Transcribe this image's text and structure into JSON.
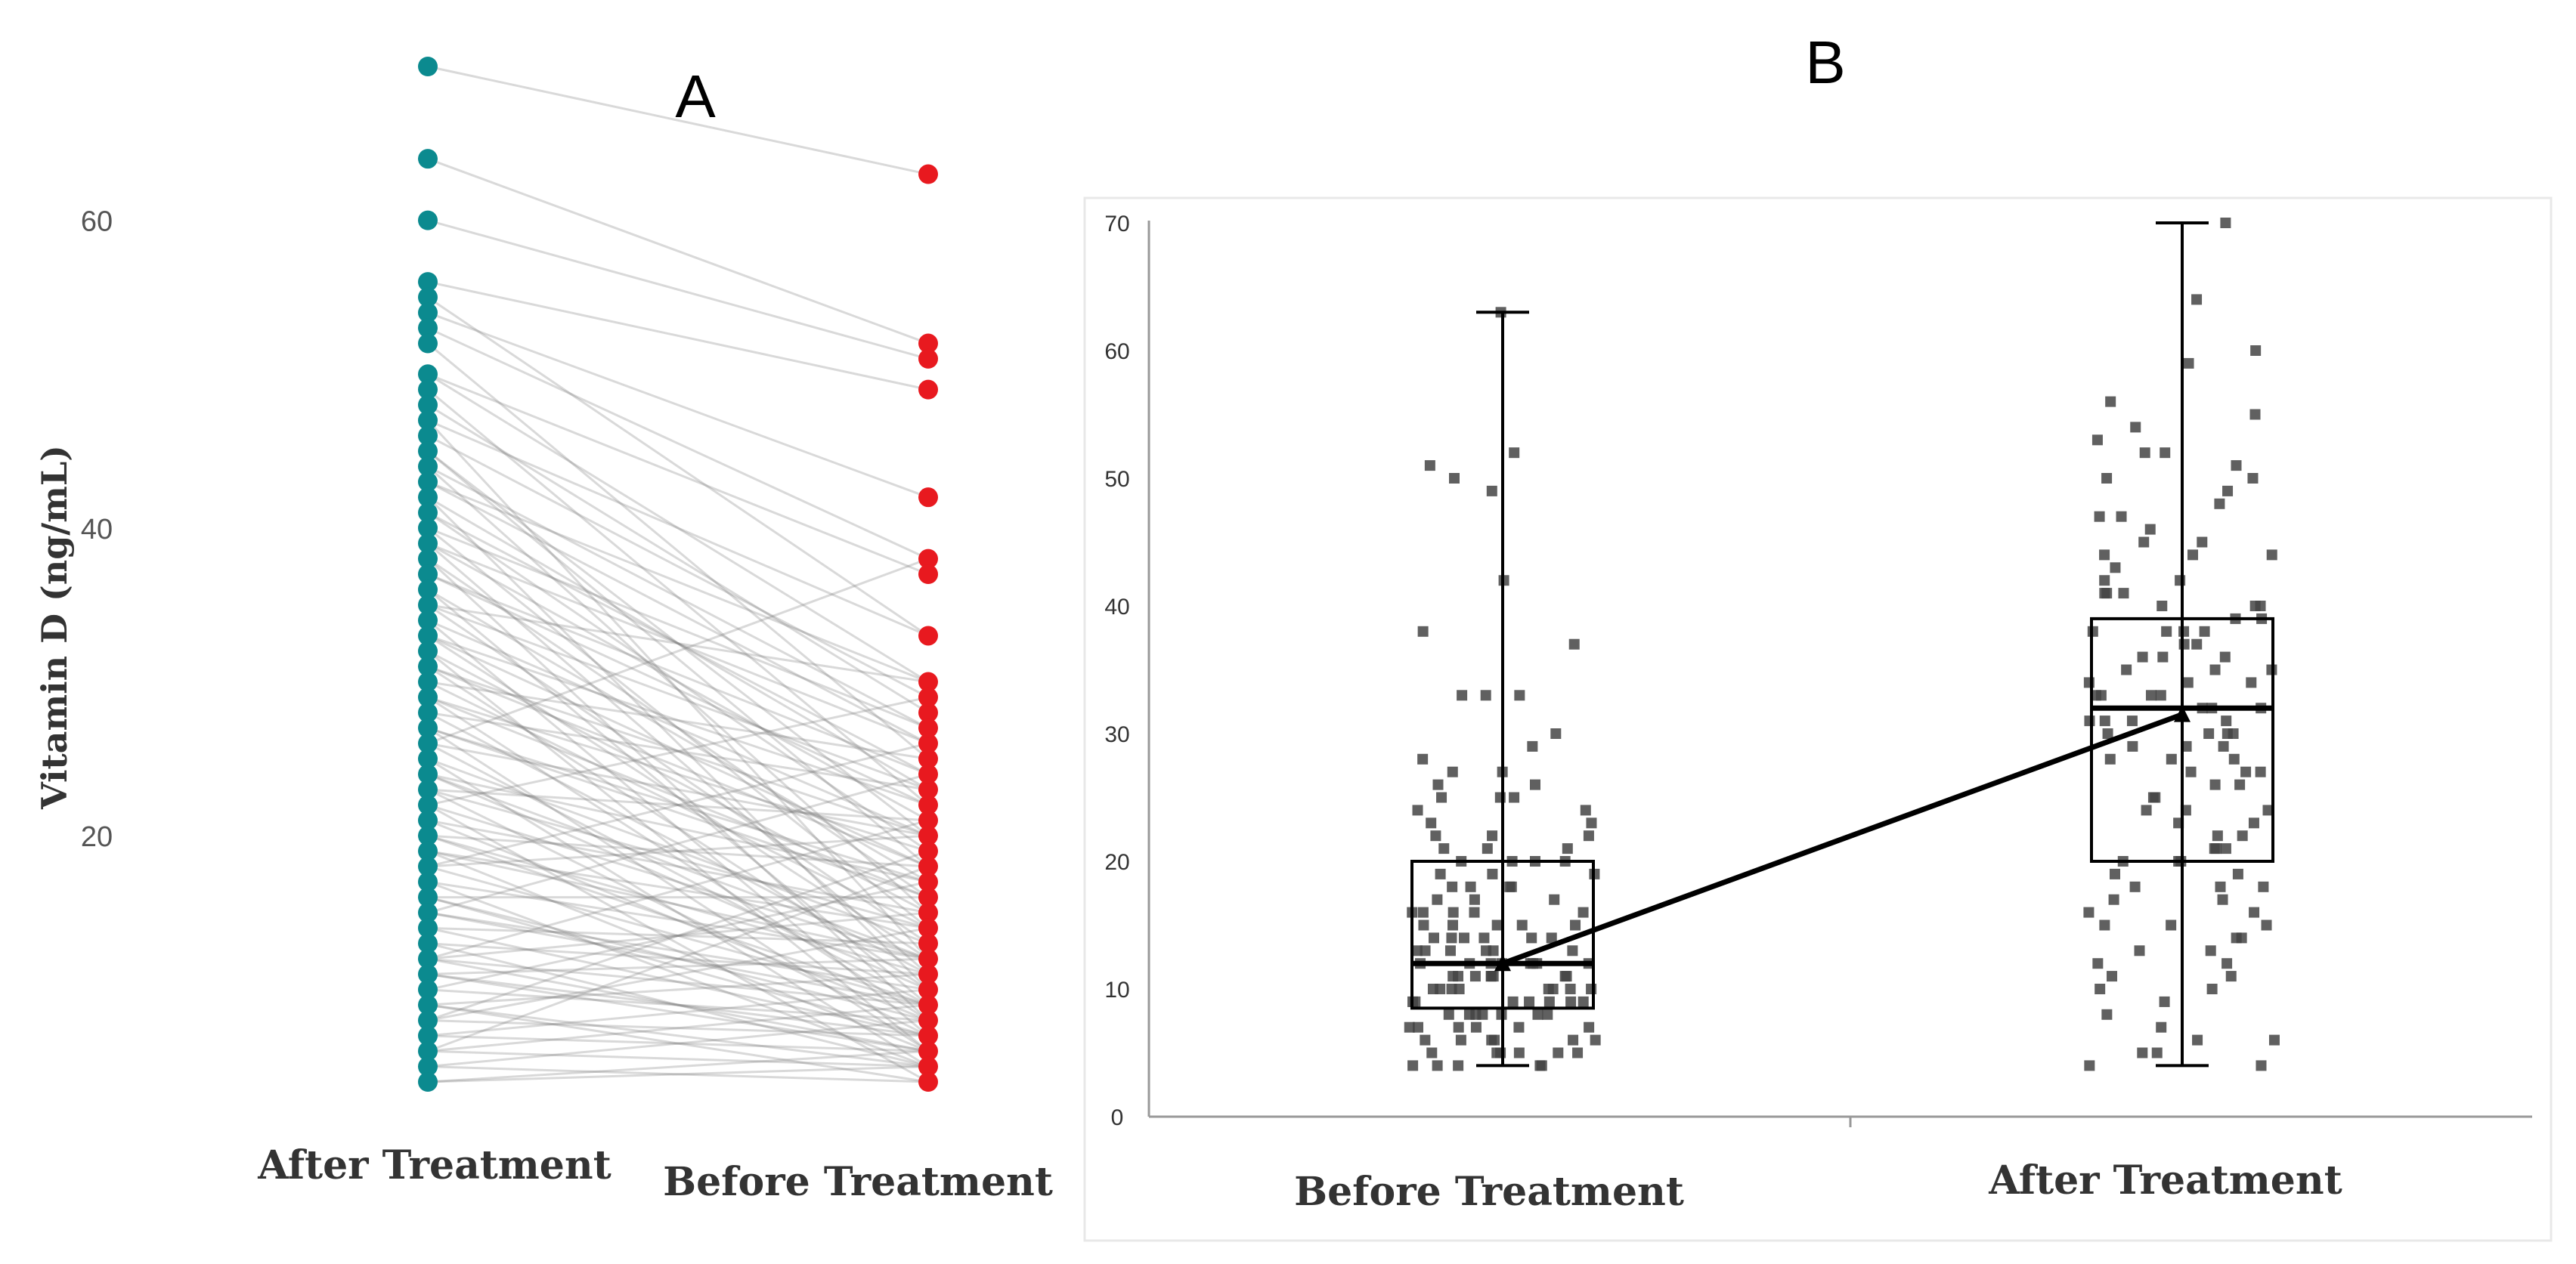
{
  "chart_data": [
    {
      "type": "line",
      "panel": "A",
      "title": "A",
      "ylabel": "Vitamin D (ng/mL)",
      "categories": [
        "After Treatment",
        "Before Treatment"
      ],
      "yticks": [
        "20",
        "40",
        "60"
      ],
      "ylim": [
        4,
        70
      ],
      "after_colour": "#0b8a8f",
      "before_colour": "#e8191f",
      "pairs": [
        [
          70,
          63
        ],
        [
          64,
          52
        ],
        [
          60,
          51
        ],
        [
          56,
          49
        ],
        [
          55,
          33
        ],
        [
          54,
          42
        ],
        [
          53,
          38
        ],
        [
          52,
          25
        ],
        [
          50,
          37
        ],
        [
          50,
          30
        ],
        [
          49,
          22
        ],
        [
          48,
          28
        ],
        [
          47,
          12
        ],
        [
          46,
          29
        ],
        [
          45,
          20
        ],
        [
          45,
          18
        ],
        [
          44,
          15
        ],
        [
          43,
          26
        ],
        [
          42,
          10
        ],
        [
          42,
          23
        ],
        [
          41,
          19
        ],
        [
          40,
          14
        ],
        [
          40,
          27
        ],
        [
          39,
          11
        ],
        [
          39,
          21
        ],
        [
          38,
          8
        ],
        [
          38,
          16
        ],
        [
          37,
          24
        ],
        [
          36,
          9
        ],
        [
          36,
          17
        ],
        [
          35,
          13
        ],
        [
          35,
          30
        ],
        [
          34,
          7
        ],
        [
          34,
          20
        ],
        [
          33,
          12
        ],
        [
          33,
          22
        ],
        [
          32,
          6
        ],
        [
          32,
          15
        ],
        [
          31,
          18
        ],
        [
          31,
          10
        ],
        [
          30,
          14
        ],
        [
          30,
          25
        ],
        [
          29,
          8
        ],
        [
          29,
          19
        ],
        [
          28,
          11
        ],
        [
          28,
          23
        ],
        [
          27,
          6
        ],
        [
          27,
          16
        ],
        [
          26,
          9
        ],
        [
          26,
          20
        ],
        [
          25,
          13
        ],
        [
          25,
          5
        ],
        [
          24,
          17
        ],
        [
          24,
          10
        ],
        [
          23,
          7
        ],
        [
          23,
          21
        ],
        [
          22,
          12
        ],
        [
          22,
          4
        ],
        [
          21,
          15
        ],
        [
          21,
          8
        ],
        [
          20,
          18
        ],
        [
          20,
          11
        ],
        [
          19,
          6
        ],
        [
          19,
          14
        ],
        [
          18,
          9
        ],
        [
          18,
          20
        ],
        [
          17,
          12
        ],
        [
          17,
          5
        ],
        [
          16,
          16
        ],
        [
          16,
          8
        ],
        [
          15,
          10
        ],
        [
          15,
          24
        ],
        [
          14,
          7
        ],
        [
          14,
          13
        ],
        [
          13,
          11
        ],
        [
          13,
          5
        ],
        [
          12,
          9
        ],
        [
          12,
          15
        ],
        [
          11,
          6
        ],
        [
          11,
          12
        ],
        [
          10,
          8
        ],
        [
          10,
          17
        ],
        [
          9,
          5
        ],
        [
          9,
          11
        ],
        [
          8,
          7
        ],
        [
          8,
          14
        ],
        [
          7,
          6
        ],
        [
          7,
          10
        ],
        [
          6,
          5
        ],
        [
          6,
          9
        ],
        [
          5,
          8
        ],
        [
          5,
          4
        ],
        [
          4,
          6
        ],
        [
          4,
          5
        ],
        [
          26,
          38
        ],
        [
          22,
          29
        ],
        [
          18,
          26
        ],
        [
          12,
          21
        ],
        [
          8,
          19
        ],
        [
          6,
          18
        ],
        [
          44,
          27
        ],
        [
          41,
          24
        ],
        [
          37,
          22
        ],
        [
          33,
          18
        ],
        [
          29,
          16
        ],
        [
          24,
          12
        ],
        [
          20,
          9
        ],
        [
          16,
          7
        ],
        [
          12,
          6
        ],
        [
          9,
          4
        ],
        [
          47,
          33
        ],
        [
          43,
          30
        ],
        [
          39,
          26
        ],
        [
          35,
          23
        ],
        [
          31,
          20
        ],
        [
          27,
          17
        ],
        [
          23,
          14
        ],
        [
          19,
          12
        ],
        [
          15,
          9
        ],
        [
          11,
          7
        ]
      ]
    },
    {
      "type": "scatter",
      "panel": "B",
      "title": "B",
      "categories": [
        "Before Treatment",
        "After Treatment"
      ],
      "yticks": [
        "0",
        "10",
        "20",
        "30",
        "40",
        "50",
        "60",
        "70"
      ],
      "ylim": [
        0,
        70
      ],
      "boxes": [
        {
          "category": "Before Treatment",
          "min": 4,
          "q1": 8.5,
          "median": 12,
          "q3": 20,
          "max": 63,
          "mean": 12
        },
        {
          "category": "After Treatment",
          "min": 4,
          "q1": 20,
          "median": 32,
          "q3": 39,
          "max": 70,
          "mean": 31.5
        }
      ],
      "mean_line": [
        12,
        31.5
      ],
      "before_points": [
        63,
        52,
        51,
        50,
        49,
        42,
        38,
        37,
        33,
        33,
        33,
        30,
        29,
        28,
        27,
        27,
        26,
        26,
        25,
        25,
        25,
        24,
        24,
        23,
        23,
        22,
        22,
        21,
        21,
        20,
        20,
        20,
        19,
        19,
        19,
        18,
        18,
        18,
        17,
        17,
        17,
        16,
        16,
        16,
        16,
        15,
        15,
        15,
        15,
        14,
        14,
        14,
        14,
        13,
        13,
        13,
        13,
        13,
        12,
        12,
        12,
        12,
        12,
        12,
        11,
        11,
        11,
        11,
        11,
        11,
        10,
        10,
        10,
        10,
        10,
        10,
        9,
        9,
        9,
        9,
        9,
        9,
        8,
        8,
        8,
        8,
        8,
        8,
        7,
        7,
        7,
        7,
        7,
        6,
        6,
        6,
        6,
        6,
        5,
        5,
        5,
        5,
        5,
        4,
        4,
        4,
        4,
        4,
        12,
        13,
        14,
        11,
        10,
        9,
        15,
        16,
        18,
        20,
        21,
        22,
        8,
        7,
        6,
        5,
        12,
        11,
        10,
        14
      ],
      "after_points": [
        70,
        64,
        60,
        59,
        56,
        55,
        54,
        53,
        52,
        52,
        51,
        50,
        50,
        49,
        48,
        47,
        46,
        45,
        45,
        44,
        44,
        43,
        42,
        42,
        41,
        41,
        40,
        40,
        40,
        39,
        39,
        38,
        38,
        38,
        37,
        37,
        36,
        36,
        35,
        35,
        35,
        34,
        34,
        33,
        33,
        33,
        32,
        32,
        32,
        31,
        31,
        31,
        30,
        30,
        30,
        29,
        29,
        28,
        28,
        28,
        27,
        27,
        26,
        26,
        25,
        25,
        24,
        24,
        23,
        23,
        22,
        22,
        21,
        21,
        20,
        20,
        20,
        19,
        19,
        18,
        18,
        17,
        17,
        16,
        16,
        15,
        15,
        14,
        14,
        13,
        13,
        12,
        12,
        11,
        11,
        10,
        10,
        9,
        8,
        7,
        6,
        6,
        5,
        5,
        4,
        4,
        36,
        34,
        31,
        29,
        27,
        24,
        21,
        18,
        15,
        38,
        41,
        44,
        47,
        33,
        30
      ]
    }
  ]
}
